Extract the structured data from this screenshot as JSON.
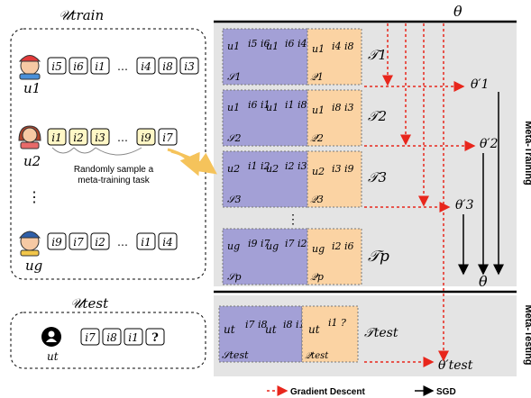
{
  "train_panel": {
    "title": "𝒰train",
    "users": [
      {
        "label": "u1",
        "items": [
          "i5",
          "i6",
          "i1",
          "…",
          "i4",
          "i8",
          "i3"
        ]
      },
      {
        "label": "u2",
        "items": [
          "i1",
          "i2",
          "i3",
          "…",
          "i9",
          "i7"
        ]
      },
      {
        "label": "ug",
        "items": [
          "i9",
          "i7",
          "i2",
          "…",
          "i1",
          "i4"
        ]
      }
    ],
    "vertical_ellipsis": "⋮",
    "sample_note_line1": "Randomly sample a",
    "sample_note_line2": "meta-training task"
  },
  "test_panel": {
    "title": "𝒰test",
    "user_label": "ut",
    "items": [
      "i7",
      "i8",
      "i1",
      "?"
    ]
  },
  "tasks": [
    {
      "user": "u1",
      "support_items": [
        "i5 i6",
        "i6 i4"
      ],
      "support_label": "𝒮1",
      "query_items": "i4 i8",
      "query_label": "𝒬1",
      "task_label": "𝒯1",
      "param": "θ′1"
    },
    {
      "user": "u1",
      "support_items": [
        "i6 i1",
        "i1 i8"
      ],
      "support_label": "𝒮2",
      "query_items": "i8 i3",
      "query_label": "𝒬2",
      "task_label": "𝒯2",
      "param": "θ′2"
    },
    {
      "user": "u2",
      "support_items": [
        "i1 i2",
        "i2 i3"
      ],
      "support_label": "𝒮3",
      "query_items": "i3 i9",
      "query_label": "𝒬3",
      "task_label": "𝒯3",
      "param": "θ′3"
    },
    {
      "user": "ug",
      "support_items": [
        "i9 i7",
        "i7 i2"
      ],
      "support_label": "𝒮p",
      "query_items": "i2 i6",
      "query_label": "𝒬p",
      "task_label": "𝒯p",
      "param": ""
    }
  ],
  "test_task": {
    "user": "ut",
    "support_items": [
      "i7 i8",
      "i8 i1"
    ],
    "support_label": "𝒮test",
    "query_items": "i1 ?",
    "query_label": "𝒬test",
    "task_label": "𝒯test",
    "param": "θ′test"
  },
  "theta_top": "θ",
  "theta_bottom": "θ",
  "section_labels": {
    "training": "Meta-Training",
    "testing": "Meta-Testing"
  },
  "legend": {
    "gradient": "Gradient Descent",
    "sgd": "SGD"
  },
  "colors": {
    "support": "#a3a0d6",
    "query": "#fbd3a3",
    "gradient_arrow": "#e8261c",
    "panel_bg": "#e4e4e4"
  }
}
